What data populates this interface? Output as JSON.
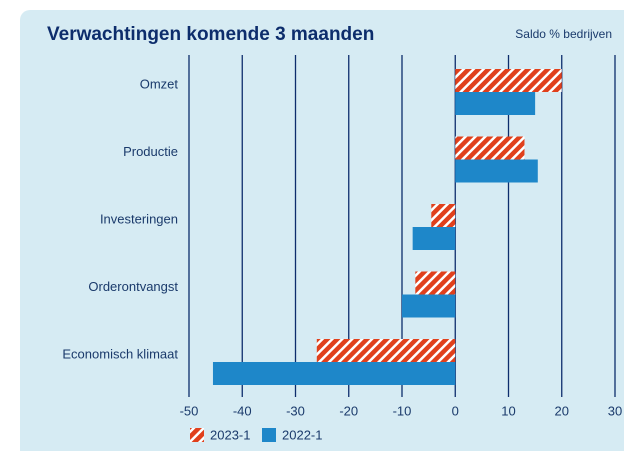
{
  "chart_data": {
    "type": "barh",
    "title": "Verwachtingen komende 3 maanden",
    "subtitle": "Saldo % bedrijven",
    "categories": [
      "Omzet",
      "Productie",
      "Investeringen",
      "Orderontvangst",
      "Economisch klimaat"
    ],
    "series": [
      {
        "name": "2023-1",
        "color": "#e0401c",
        "hatch": true,
        "values": [
          20,
          13,
          -4.5,
          -7.5,
          -26
        ]
      },
      {
        "name": "2022-1",
        "color": "#1e87c9",
        "hatch": false,
        "values": [
          15,
          15.5,
          -8,
          -10,
          -45.5
        ]
      }
    ],
    "xlim": [
      -50,
      30
    ],
    "xticks": [
      -50,
      -40,
      -30,
      -20,
      -10,
      0,
      10,
      20,
      30
    ],
    "grid": true
  }
}
